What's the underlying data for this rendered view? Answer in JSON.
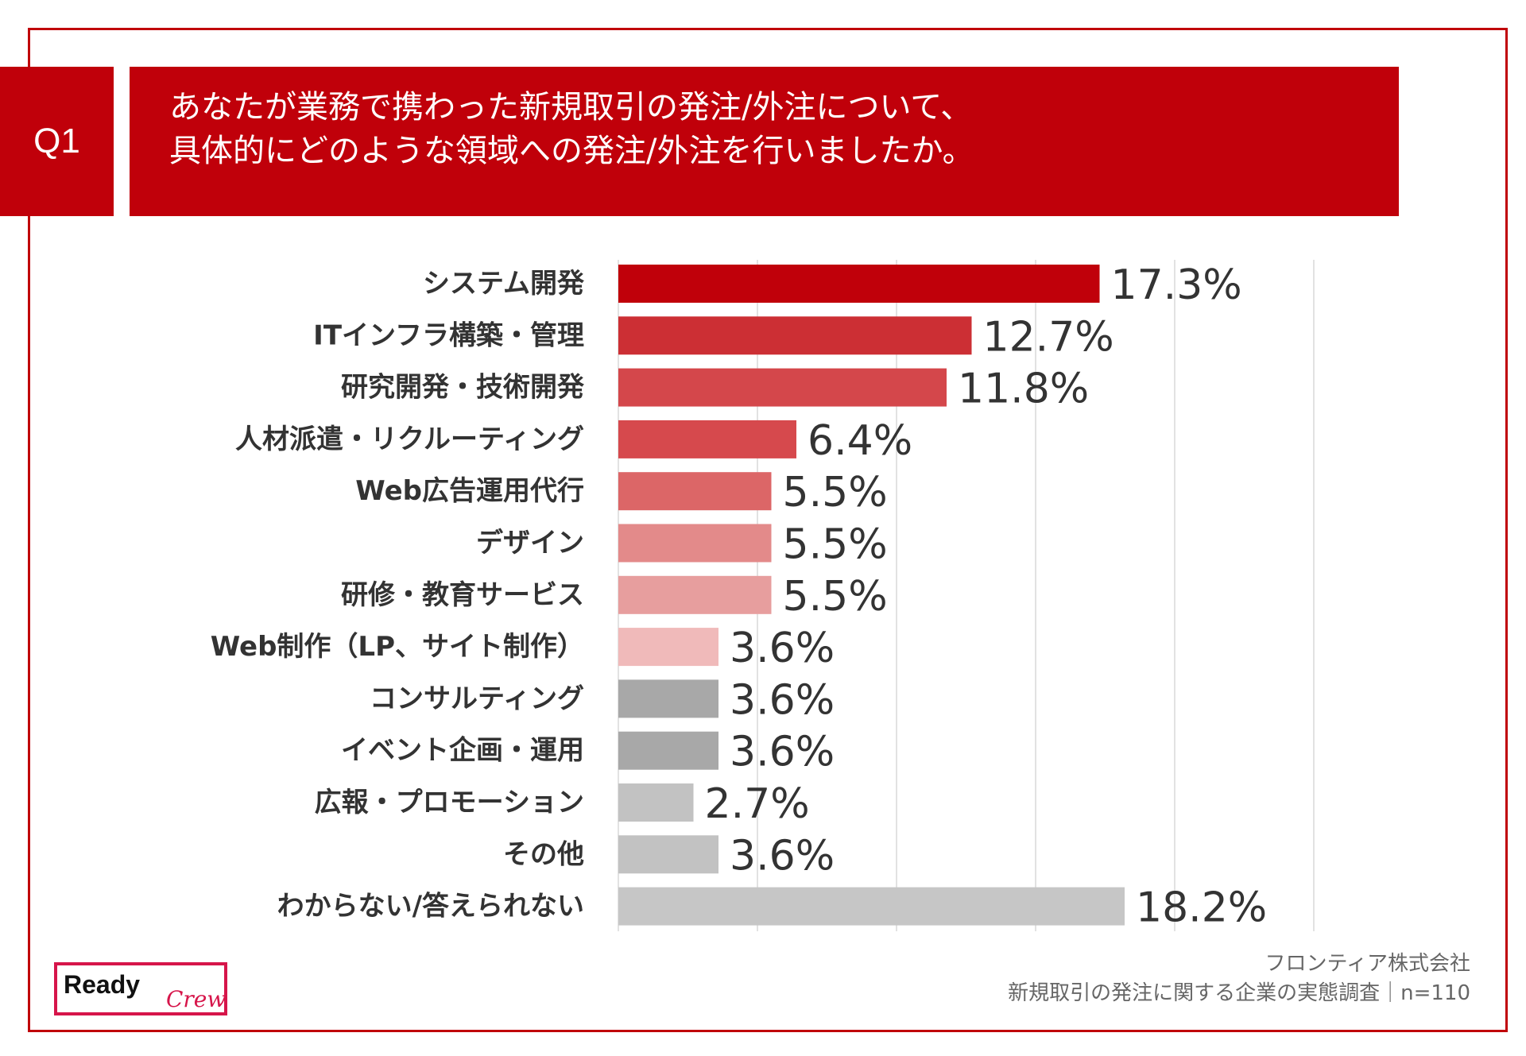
{
  "question": {
    "badge": "Q1",
    "line1": "あなたが業務で携わった新規取引の発注/外注について、",
    "line2": "具体的にどのような領域への発注/外注を行いましたか。"
  },
  "chart_data": {
    "type": "bar",
    "orientation": "horizontal",
    "title": "あなたが業務で携わった新規取引の発注/外注について、具体的にどのような領域への発注/外注を行いましたか。",
    "categories": [
      "システム開発",
      "ITインフラ構築・管理",
      "研究開発・技術開発",
      "人材派遣・リクルーティング",
      "Web広告運用代行",
      "デザイン",
      "研修・教育サービス",
      "Web制作（LP、サイト制作）",
      "コンサルティング",
      "イベント企画・運用",
      "広報・プロモーション",
      "その他",
      "わからない/答えられない"
    ],
    "values": [
      17.3,
      12.7,
      11.8,
      6.4,
      5.5,
      5.5,
      5.5,
      3.6,
      3.6,
      3.6,
      2.7,
      3.6,
      18.2
    ],
    "value_labels": [
      "17.3%",
      "12.7%",
      "11.8%",
      "6.4%",
      "5.5%",
      "5.5%",
      "5.5%",
      "3.6%",
      "3.6%",
      "3.6%",
      "2.7%",
      "3.6%",
      "18.2%"
    ],
    "colors": [
      "#c0000a",
      "#cc2f34",
      "#d4474b",
      "#d6494d",
      "#dc6667",
      "#e38a8a",
      "#e79e9e",
      "#f0baba",
      "#a8a8a8",
      "#a8a8a8",
      "#c2c2c2",
      "#c2c2c2",
      "#c6c6c6"
    ],
    "xlim": [
      0,
      25
    ],
    "grid": true,
    "grid_color": "#d9d9d9",
    "xlabel": "",
    "ylabel": ""
  },
  "logo": {
    "ready": "Ready",
    "crew": "Crew"
  },
  "footer": {
    "company": "フロンティア株式会社",
    "survey": "新規取引の発注に関する企業の実態調査｜n=110"
  },
  "colors": {
    "brand_red": "#c0000a",
    "text": "#333333",
    "footer_text": "#666666",
    "logo_pink": "#d6154a"
  }
}
